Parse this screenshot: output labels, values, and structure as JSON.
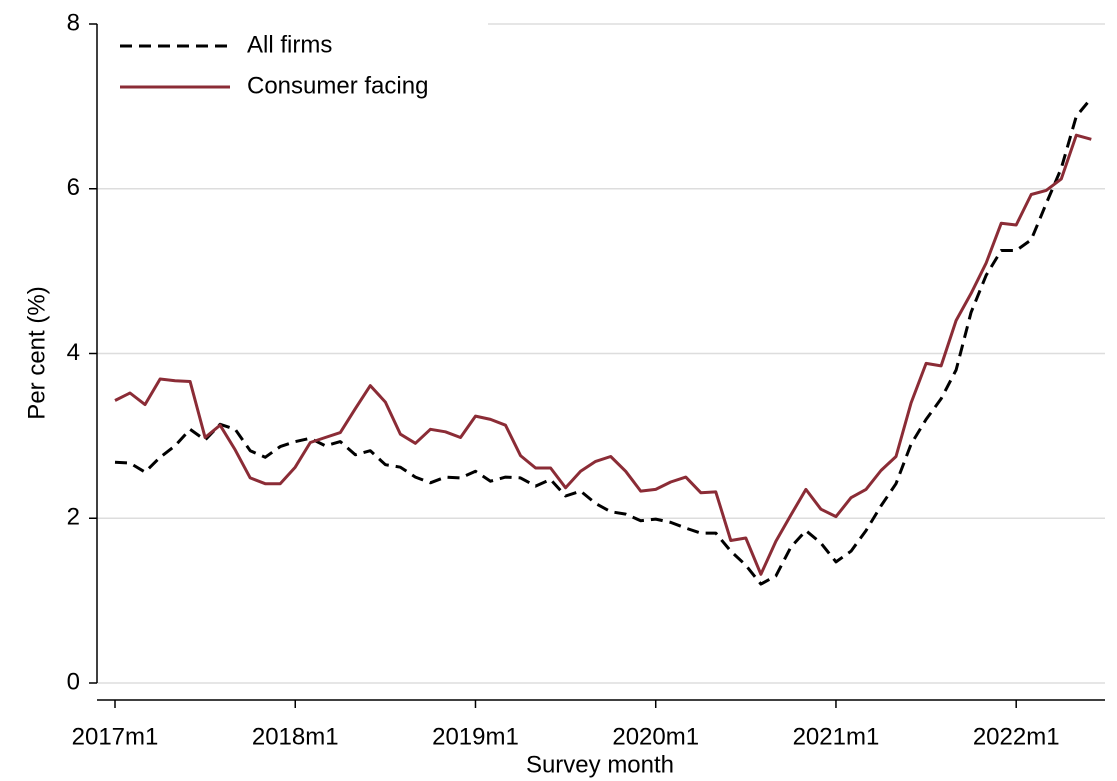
{
  "chart_data": {
    "type": "line",
    "x_label": "Survey month",
    "y_label": "Per cent (%)",
    "categories": [
      "2017m1",
      null,
      null,
      null,
      null,
      null,
      null,
      null,
      null,
      null,
      null,
      null,
      "2018m1",
      null,
      null,
      null,
      null,
      null,
      null,
      null,
      null,
      null,
      null,
      null,
      "2019m1",
      null,
      null,
      null,
      null,
      null,
      null,
      null,
      null,
      null,
      null,
      null,
      "2020m1",
      null,
      null,
      null,
      null,
      null,
      null,
      null,
      null,
      null,
      null,
      null,
      "2021m1",
      null,
      null,
      null,
      null,
      null,
      null,
      null,
      null,
      null,
      null,
      null,
      "2022m1",
      null,
      null,
      null,
      null,
      null
    ],
    "series": [
      {
        "name": "All firms",
        "color": "#000000",
        "dashed": true,
        "values": [
          2.68,
          2.67,
          2.56,
          2.74,
          2.88,
          3.08,
          2.95,
          3.14,
          3.08,
          2.82,
          2.74,
          2.87,
          2.93,
          2.97,
          2.88,
          2.93,
          2.77,
          2.82,
          2.65,
          2.62,
          2.5,
          2.43,
          2.5,
          2.49,
          2.57,
          2.45,
          2.5,
          2.49,
          2.39,
          2.47,
          2.27,
          2.33,
          2.18,
          2.08,
          2.05,
          1.97,
          1.99,
          1.95,
          1.88,
          1.82,
          1.82,
          1.6,
          1.43,
          1.2,
          1.3,
          1.65,
          1.85,
          1.7,
          1.47,
          1.6,
          1.85,
          2.15,
          2.42,
          2.9,
          3.2,
          3.45,
          3.8,
          4.5,
          4.95,
          5.25,
          5.25,
          5.38,
          5.82,
          6.25,
          6.88,
          7.1
        ]
      },
      {
        "name": "Consumer facing",
        "color": "#8b2c36",
        "dashed": false,
        "values": [
          3.43,
          3.52,
          3.38,
          3.69,
          3.67,
          3.66,
          2.98,
          3.13,
          2.83,
          2.49,
          2.42,
          2.42,
          2.62,
          2.92,
          2.98,
          3.04,
          3.33,
          3.61,
          3.41,
          3.02,
          2.91,
          3.08,
          3.05,
          2.98,
          3.24,
          3.2,
          3.13,
          2.76,
          2.61,
          2.61,
          2.37,
          2.57,
          2.69,
          2.75,
          2.57,
          2.33,
          2.35,
          2.44,
          2.5,
          2.31,
          2.32,
          1.73,
          1.76,
          1.32,
          1.72,
          2.04,
          2.35,
          2.11,
          2.02,
          2.25,
          2.35,
          2.58,
          2.75,
          3.4,
          3.88,
          3.85,
          4.4,
          4.73,
          5.1,
          5.58,
          5.56,
          5.93,
          5.98,
          6.12,
          6.65,
          6.6
        ]
      }
    ],
    "ylim": [
      0,
      8
    ],
    "yticks": [
      0,
      2,
      4,
      6,
      8
    ],
    "grid": true,
    "legend": "top-left"
  }
}
